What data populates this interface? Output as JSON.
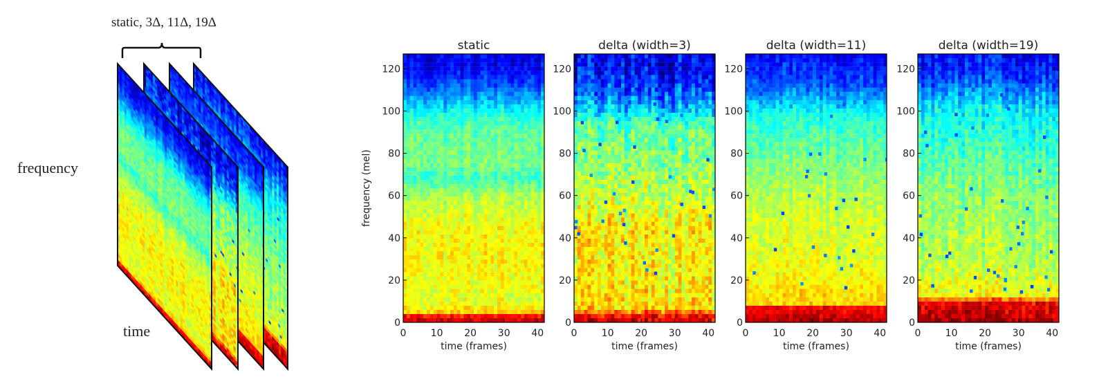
{
  "schematic": {
    "bracket_label": "static, 3Δ, 11Δ, 19Δ",
    "frequency_label": "frequency",
    "time_label": "time"
  },
  "colormap": "jet",
  "chart_data": [
    {
      "type": "heatmap",
      "title": "static",
      "xlabel": "time (frames)",
      "ylabel": "frequency (mel)",
      "xlim": [
        0,
        42
      ],
      "ylim": [
        0,
        127
      ],
      "xticks": [
        0,
        10,
        20,
        30,
        40
      ],
      "yticks": [
        0,
        20,
        40,
        60,
        80,
        100,
        120
      ],
      "x_tick_labels": [
        "0",
        "10",
        "20",
        "30",
        "40"
      ],
      "y_tick_labels": [
        "0",
        "20",
        "40",
        "60",
        "80",
        "100",
        "120"
      ],
      "profile": [
        {
          "mel": 0,
          "level": 0.94
        },
        {
          "mel": 3,
          "level": 0.86
        },
        {
          "mel": 5,
          "level": 0.66
        },
        {
          "mel": 10,
          "level": 0.6
        },
        {
          "mel": 30,
          "level": 0.63
        },
        {
          "mel": 45,
          "level": 0.62
        },
        {
          "mel": 60,
          "level": 0.55
        },
        {
          "mel": 68,
          "level": 0.43
        },
        {
          "mel": 75,
          "level": 0.5
        },
        {
          "mel": 90,
          "level": 0.47
        },
        {
          "mel": 97,
          "level": 0.42
        },
        {
          "mel": 105,
          "level": 0.3
        },
        {
          "mel": 113,
          "level": 0.2
        },
        {
          "mel": 120,
          "level": 0.12
        },
        {
          "mel": 127,
          "level": 0.1
        }
      ],
      "noise": 0.05,
      "speckles": 0
    },
    {
      "type": "heatmap",
      "title": "delta (width=3)",
      "xlabel": "time (frames)",
      "ylabel": "",
      "xlim": [
        0,
        42
      ],
      "ylim": [
        0,
        127
      ],
      "xticks": [
        0,
        10,
        20,
        30,
        40
      ],
      "yticks": [
        0,
        20,
        40,
        60,
        80,
        100,
        120
      ],
      "x_tick_labels": [
        "0",
        "10",
        "20",
        "30",
        "40"
      ],
      "y_tick_labels": [
        "0",
        "20",
        "40",
        "60",
        "80",
        "100",
        "120"
      ],
      "profile": [
        {
          "mel": 0,
          "level": 0.92
        },
        {
          "mel": 4,
          "level": 0.86
        },
        {
          "mel": 6,
          "level": 0.66
        },
        {
          "mel": 20,
          "level": 0.63
        },
        {
          "mel": 45,
          "level": 0.64
        },
        {
          "mel": 60,
          "level": 0.56
        },
        {
          "mel": 80,
          "level": 0.5
        },
        {
          "mel": 95,
          "level": 0.45
        },
        {
          "mel": 100,
          "level": 0.33
        },
        {
          "mel": 110,
          "level": 0.2
        },
        {
          "mel": 118,
          "level": 0.13
        },
        {
          "mel": 127,
          "level": 0.1
        }
      ],
      "noise": 0.08,
      "speckles": 40
    },
    {
      "type": "heatmap",
      "title": "delta (width=11)",
      "xlabel": "time (frames)",
      "ylabel": "",
      "xlim": [
        0,
        42
      ],
      "ylim": [
        0,
        127
      ],
      "xticks": [
        0,
        10,
        20,
        30,
        40
      ],
      "yticks": [
        0,
        20,
        40,
        60,
        80,
        100,
        120
      ],
      "x_tick_labels": [
        "0",
        "10",
        "20",
        "30",
        "40"
      ],
      "y_tick_labels": [
        "0",
        "20",
        "40",
        "60",
        "80",
        "100",
        "120"
      ],
      "profile": [
        {
          "mel": 0,
          "level": 0.95
        },
        {
          "mel": 7,
          "level": 0.88
        },
        {
          "mel": 9,
          "level": 0.66
        },
        {
          "mel": 30,
          "level": 0.6
        },
        {
          "mel": 50,
          "level": 0.58
        },
        {
          "mel": 70,
          "level": 0.52
        },
        {
          "mel": 85,
          "level": 0.46
        },
        {
          "mel": 98,
          "level": 0.4
        },
        {
          "mel": 105,
          "level": 0.3
        },
        {
          "mel": 113,
          "level": 0.2
        },
        {
          "mel": 127,
          "level": 0.12
        }
      ],
      "noise": 0.05,
      "speckles": 30
    },
    {
      "type": "heatmap",
      "title": "delta (width=19)",
      "xlabel": "time (frames)",
      "ylabel": "",
      "xlim": [
        0,
        42
      ],
      "ylim": [
        0,
        127
      ],
      "xticks": [
        0,
        10,
        20,
        30,
        40
      ],
      "yticks": [
        0,
        20,
        40,
        60,
        80,
        100,
        120
      ],
      "x_tick_labels": [
        "0",
        "10",
        "20",
        "30",
        "40"
      ],
      "y_tick_labels": [
        "0",
        "20",
        "40",
        "60",
        "80",
        "100",
        "120"
      ],
      "profile": [
        {
          "mel": 0,
          "level": 0.96
        },
        {
          "mel": 10,
          "level": 0.88
        },
        {
          "mel": 12,
          "level": 0.62
        },
        {
          "mel": 30,
          "level": 0.55
        },
        {
          "mel": 55,
          "level": 0.52
        },
        {
          "mel": 70,
          "level": 0.48
        },
        {
          "mel": 85,
          "level": 0.42
        },
        {
          "mel": 100,
          "level": 0.37
        },
        {
          "mel": 108,
          "level": 0.28
        },
        {
          "mel": 115,
          "level": 0.18
        },
        {
          "mel": 127,
          "level": 0.12
        }
      ],
      "noise": 0.06,
      "speckles": 45
    }
  ]
}
